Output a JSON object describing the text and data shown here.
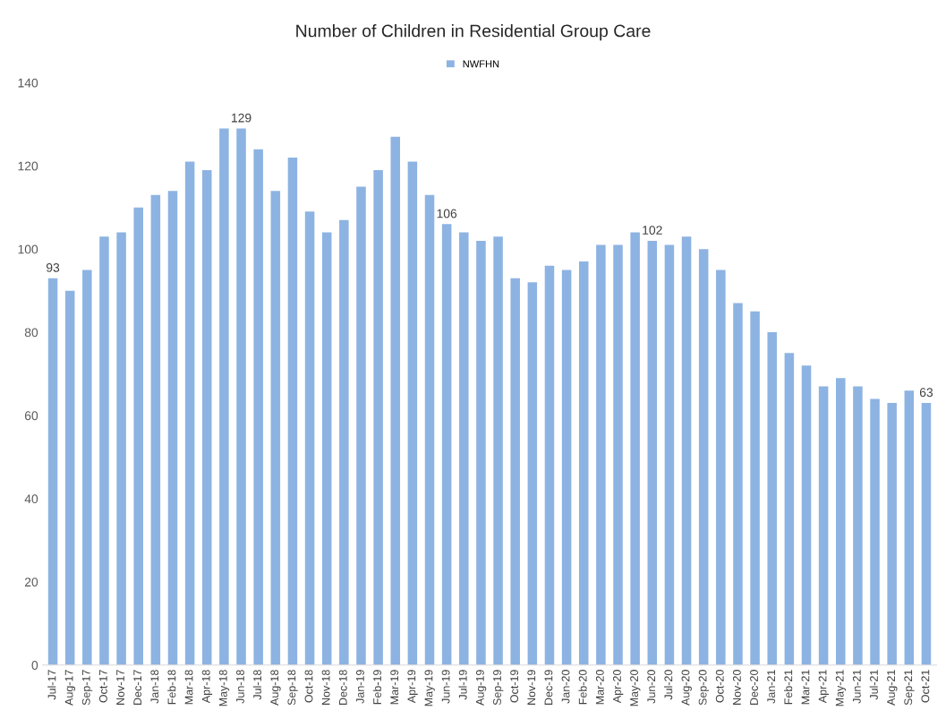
{
  "chart_data": {
    "type": "bar",
    "title": "Number of Children in Residential Group Care",
    "categories": [
      "Jul-17",
      "Aug-17",
      "Sep-17",
      "Oct-17",
      "Nov-17",
      "Dec-17",
      "Jan-18",
      "Feb-18",
      "Mar-18",
      "Apr-18",
      "May-18",
      "Jun-18",
      "Jul-18",
      "Aug-18",
      "Sep-18",
      "Oct-18",
      "Nov-18",
      "Dec-18",
      "Jan-19",
      "Feb-19",
      "Mar-19",
      "Apr-19",
      "May-19",
      "Jun-19",
      "Jul-19",
      "Aug-19",
      "Sep-19",
      "Oct-19",
      "Nov-19",
      "Dec-19",
      "Jan-20",
      "Feb-20",
      "Mar-20",
      "Apr-20",
      "May-20",
      "Jun-20",
      "Jul-20",
      "Aug-20",
      "Sep-20",
      "Oct-20",
      "Nov-20",
      "Dec-20",
      "Jan-21",
      "Feb-21",
      "Mar-21",
      "Apr-21",
      "May-21",
      "Jun-21",
      "Jul-21",
      "Aug-21",
      "Sep-21",
      "Oct-21"
    ],
    "series": [
      {
        "name": "NWFHN",
        "color": "#8db3e2",
        "values": [
          93,
          90,
          95,
          103,
          104,
          110,
          113,
          114,
          121,
          119,
          129,
          129,
          124,
          114,
          122,
          109,
          104,
          107,
          115,
          119,
          127,
          121,
          113,
          106,
          104,
          102,
          103,
          93,
          92,
          96,
          95,
          97,
          101,
          101,
          104,
          102,
          101,
          103,
          100,
          95,
          87,
          85,
          80,
          75,
          72,
          67,
          69,
          67,
          64,
          63,
          66,
          63
        ],
        "value_labels": [
          "93",
          null,
          null,
          null,
          null,
          null,
          null,
          null,
          null,
          null,
          null,
          "129",
          null,
          null,
          null,
          null,
          null,
          null,
          null,
          null,
          null,
          null,
          null,
          "106",
          null,
          null,
          null,
          null,
          null,
          null,
          null,
          null,
          null,
          null,
          null,
          "102",
          null,
          null,
          null,
          null,
          null,
          null,
          null,
          null,
          null,
          null,
          null,
          null,
          null,
          null,
          null,
          "63"
        ]
      }
    ],
    "ylim": [
      0,
      140
    ],
    "yticks": [
      0,
      20,
      40,
      60,
      80,
      100,
      120,
      140
    ],
    "grid": false,
    "legend": "top"
  }
}
